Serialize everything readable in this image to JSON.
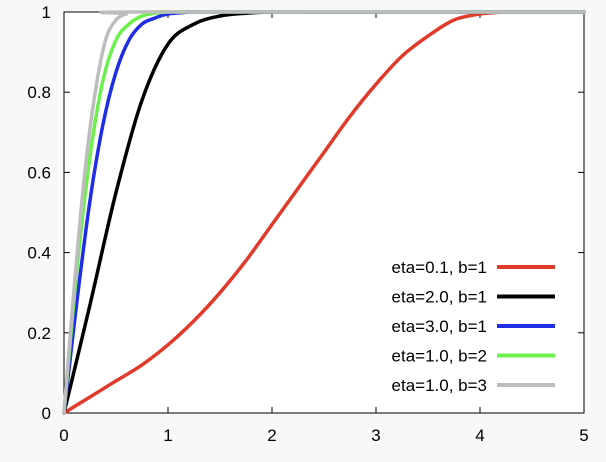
{
  "chart_data": {
    "type": "line",
    "title": "",
    "xlabel": "",
    "ylabel": "",
    "xlim": [
      0,
      5
    ],
    "ylim": [
      0,
      1
    ],
    "x_ticks": [
      "0",
      "1",
      "2",
      "3",
      "4",
      "5"
    ],
    "y_ticks": [
      "0",
      "0.2",
      "0.4",
      "0.6",
      "0.8",
      "1"
    ],
    "grid": false,
    "legend_position": "bottom-right",
    "series": [
      {
        "name": "eta=0.1, b=1",
        "color": "#e03a2a",
        "x": [
          0,
          0.25,
          0.5,
          0.75,
          1,
          1.25,
          1.5,
          1.75,
          2,
          2.25,
          2.5,
          2.75,
          3,
          3.25,
          3.5,
          3.75,
          4,
          4.25,
          4.5,
          5
        ],
        "y": [
          0,
          0.04,
          0.08,
          0.12,
          0.17,
          0.23,
          0.3,
          0.38,
          0.47,
          0.56,
          0.65,
          0.74,
          0.82,
          0.89,
          0.94,
          0.98,
          0.995,
          1,
          1,
          1
        ]
      },
      {
        "name": "eta=2.0, b=1",
        "color": "#000000",
        "x": [
          0,
          0.25,
          0.5,
          0.75,
          1,
          1.25,
          1.5,
          1.75,
          2,
          2.5,
          5
        ],
        "y": [
          0,
          0.27,
          0.55,
          0.78,
          0.92,
          0.97,
          0.99,
          0.997,
          1,
          1,
          1
        ]
      },
      {
        "name": "eta=3.0, b=1",
        "color": "#1f2de6",
        "x": [
          0,
          0.125,
          0.25,
          0.375,
          0.5,
          0.625,
          0.75,
          0.875,
          1,
          1.25,
          1.5,
          5
        ],
        "y": [
          0,
          0.28,
          0.53,
          0.72,
          0.85,
          0.93,
          0.97,
          0.985,
          0.995,
          1,
          1,
          1
        ]
      },
      {
        "name": "eta=1.0, b=2",
        "color": "#6cf04c",
        "x": [
          0,
          0.125,
          0.25,
          0.375,
          0.5,
          0.625,
          0.75,
          0.875,
          1,
          1.25,
          5
        ],
        "y": [
          0,
          0.36,
          0.64,
          0.83,
          0.93,
          0.97,
          0.99,
          0.997,
          1,
          1,
          1
        ]
      },
      {
        "name": "eta=1.0, b=3",
        "color": "#bdbdbd",
        "x": [
          0,
          0.1,
          0.2,
          0.3,
          0.4,
          0.5,
          0.6,
          0.7,
          5
        ],
        "y": [
          0,
          0.32,
          0.6,
          0.8,
          0.93,
          0.98,
          0.995,
          1,
          1
        ]
      }
    ]
  }
}
